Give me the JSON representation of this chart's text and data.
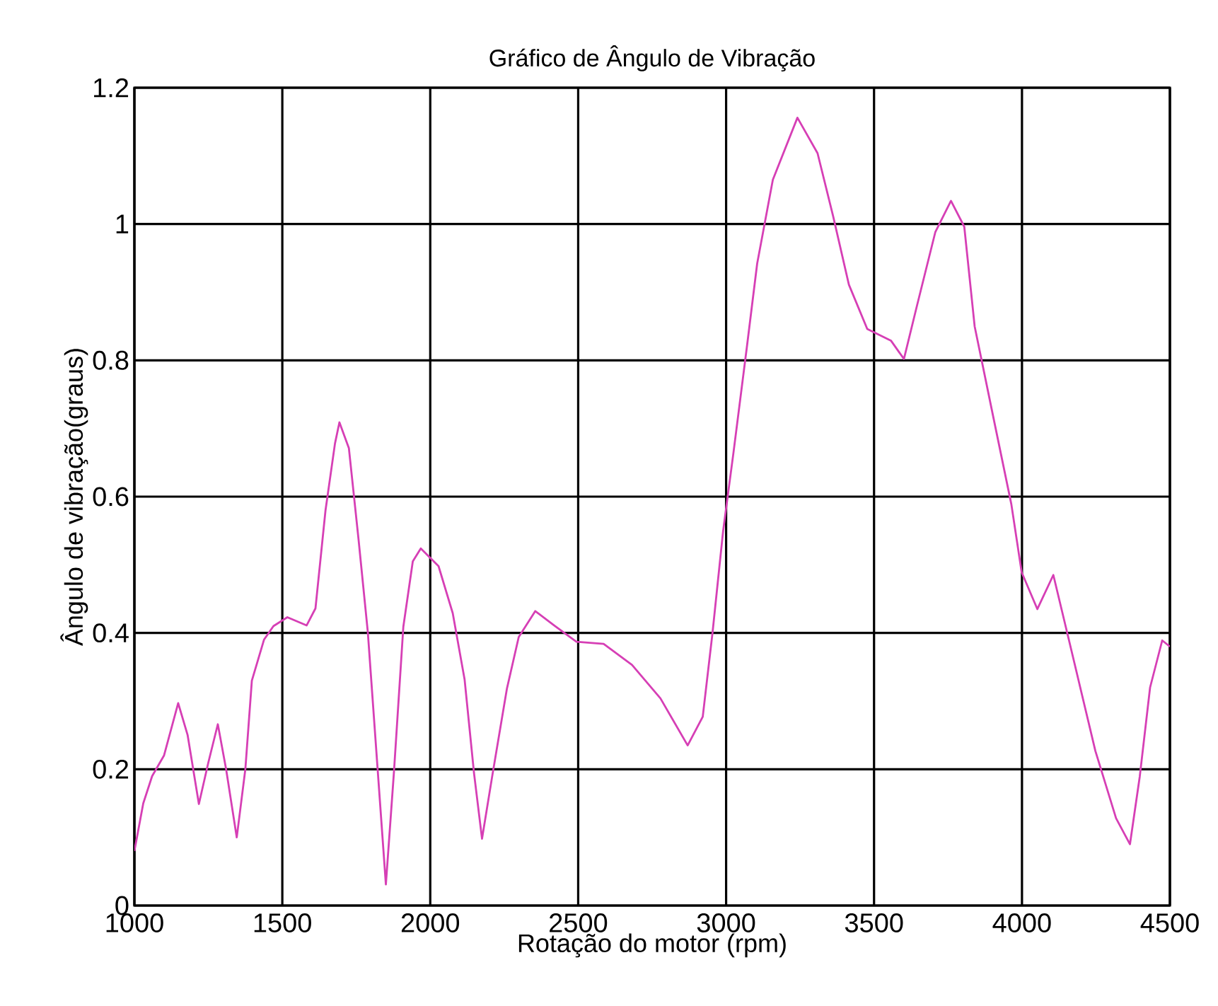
{
  "chart_data": {
    "type": "line",
    "title": "Gráfico de Ângulo de Vibração",
    "xlabel": "Rotação do motor (rpm)",
    "ylabel": "Ângulo de vibração(graus)",
    "xlim": [
      1000,
      4500
    ],
    "ylim": [
      0,
      1.2
    ],
    "xticks": [
      1000,
      1500,
      2000,
      2500,
      3000,
      3500,
      4000,
      4500
    ],
    "yticks": [
      0,
      0.2,
      0.4,
      0.6,
      0.8,
      1,
      1.2
    ],
    "grid": true,
    "marker": "none",
    "line_style": "solid",
    "series": [
      {
        "color": "#d63fb5",
        "x": [
          1000,
          1030,
          1060,
          1100,
          1148,
          1180,
          1218,
          1250,
          1282,
          1310,
          1346,
          1375,
          1397,
          1438,
          1470,
          1517,
          1582,
          1612,
          1646,
          1678,
          1693,
          1725,
          1757,
          1789,
          1821,
          1850,
          1877,
          1909,
          1941,
          1968,
          2028,
          2076,
          2116,
          2148,
          2175,
          2211,
          2259,
          2299,
          2355,
          2419,
          2494,
          2586,
          2682,
          2778,
          2870,
          2921,
          2954,
          2990,
          3025,
          3070,
          3105,
          3158,
          3241,
          3309,
          3362,
          3415,
          3477,
          3557,
          3601,
          3645,
          3707,
          3760,
          3805,
          3840,
          3902,
          3964,
          3999,
          4052,
          4106,
          4159,
          4248,
          4318,
          4365,
          4398,
          4433,
          4474,
          4500
        ],
        "values": [
          0.08,
          0.15,
          0.19,
          0.22,
          0.297,
          0.25,
          0.149,
          0.21,
          0.266,
          0.2,
          0.1,
          0.2,
          0.33,
          0.39,
          0.41,
          0.423,
          0.411,
          0.436,
          0.58,
          0.678,
          0.709,
          0.671,
          0.54,
          0.401,
          0.207,
          0.031,
          0.194,
          0.409,
          0.505,
          0.524,
          0.498,
          0.429,
          0.332,
          0.194,
          0.098,
          0.194,
          0.318,
          0.394,
          0.432,
          0.411,
          0.387,
          0.384,
          0.353,
          0.304,
          0.235,
          0.277,
          0.4,
          0.55,
          0.665,
          0.819,
          0.942,
          1.065,
          1.156,
          1.104,
          1.011,
          0.911,
          0.846,
          0.829,
          0.802,
          0.88,
          0.988,
          1.034,
          0.996,
          0.85,
          0.719,
          0.589,
          0.489,
          0.435,
          0.485,
          0.389,
          0.227,
          0.128,
          0.09,
          0.189,
          0.32,
          0.389,
          0.38
        ]
      }
    ]
  }
}
